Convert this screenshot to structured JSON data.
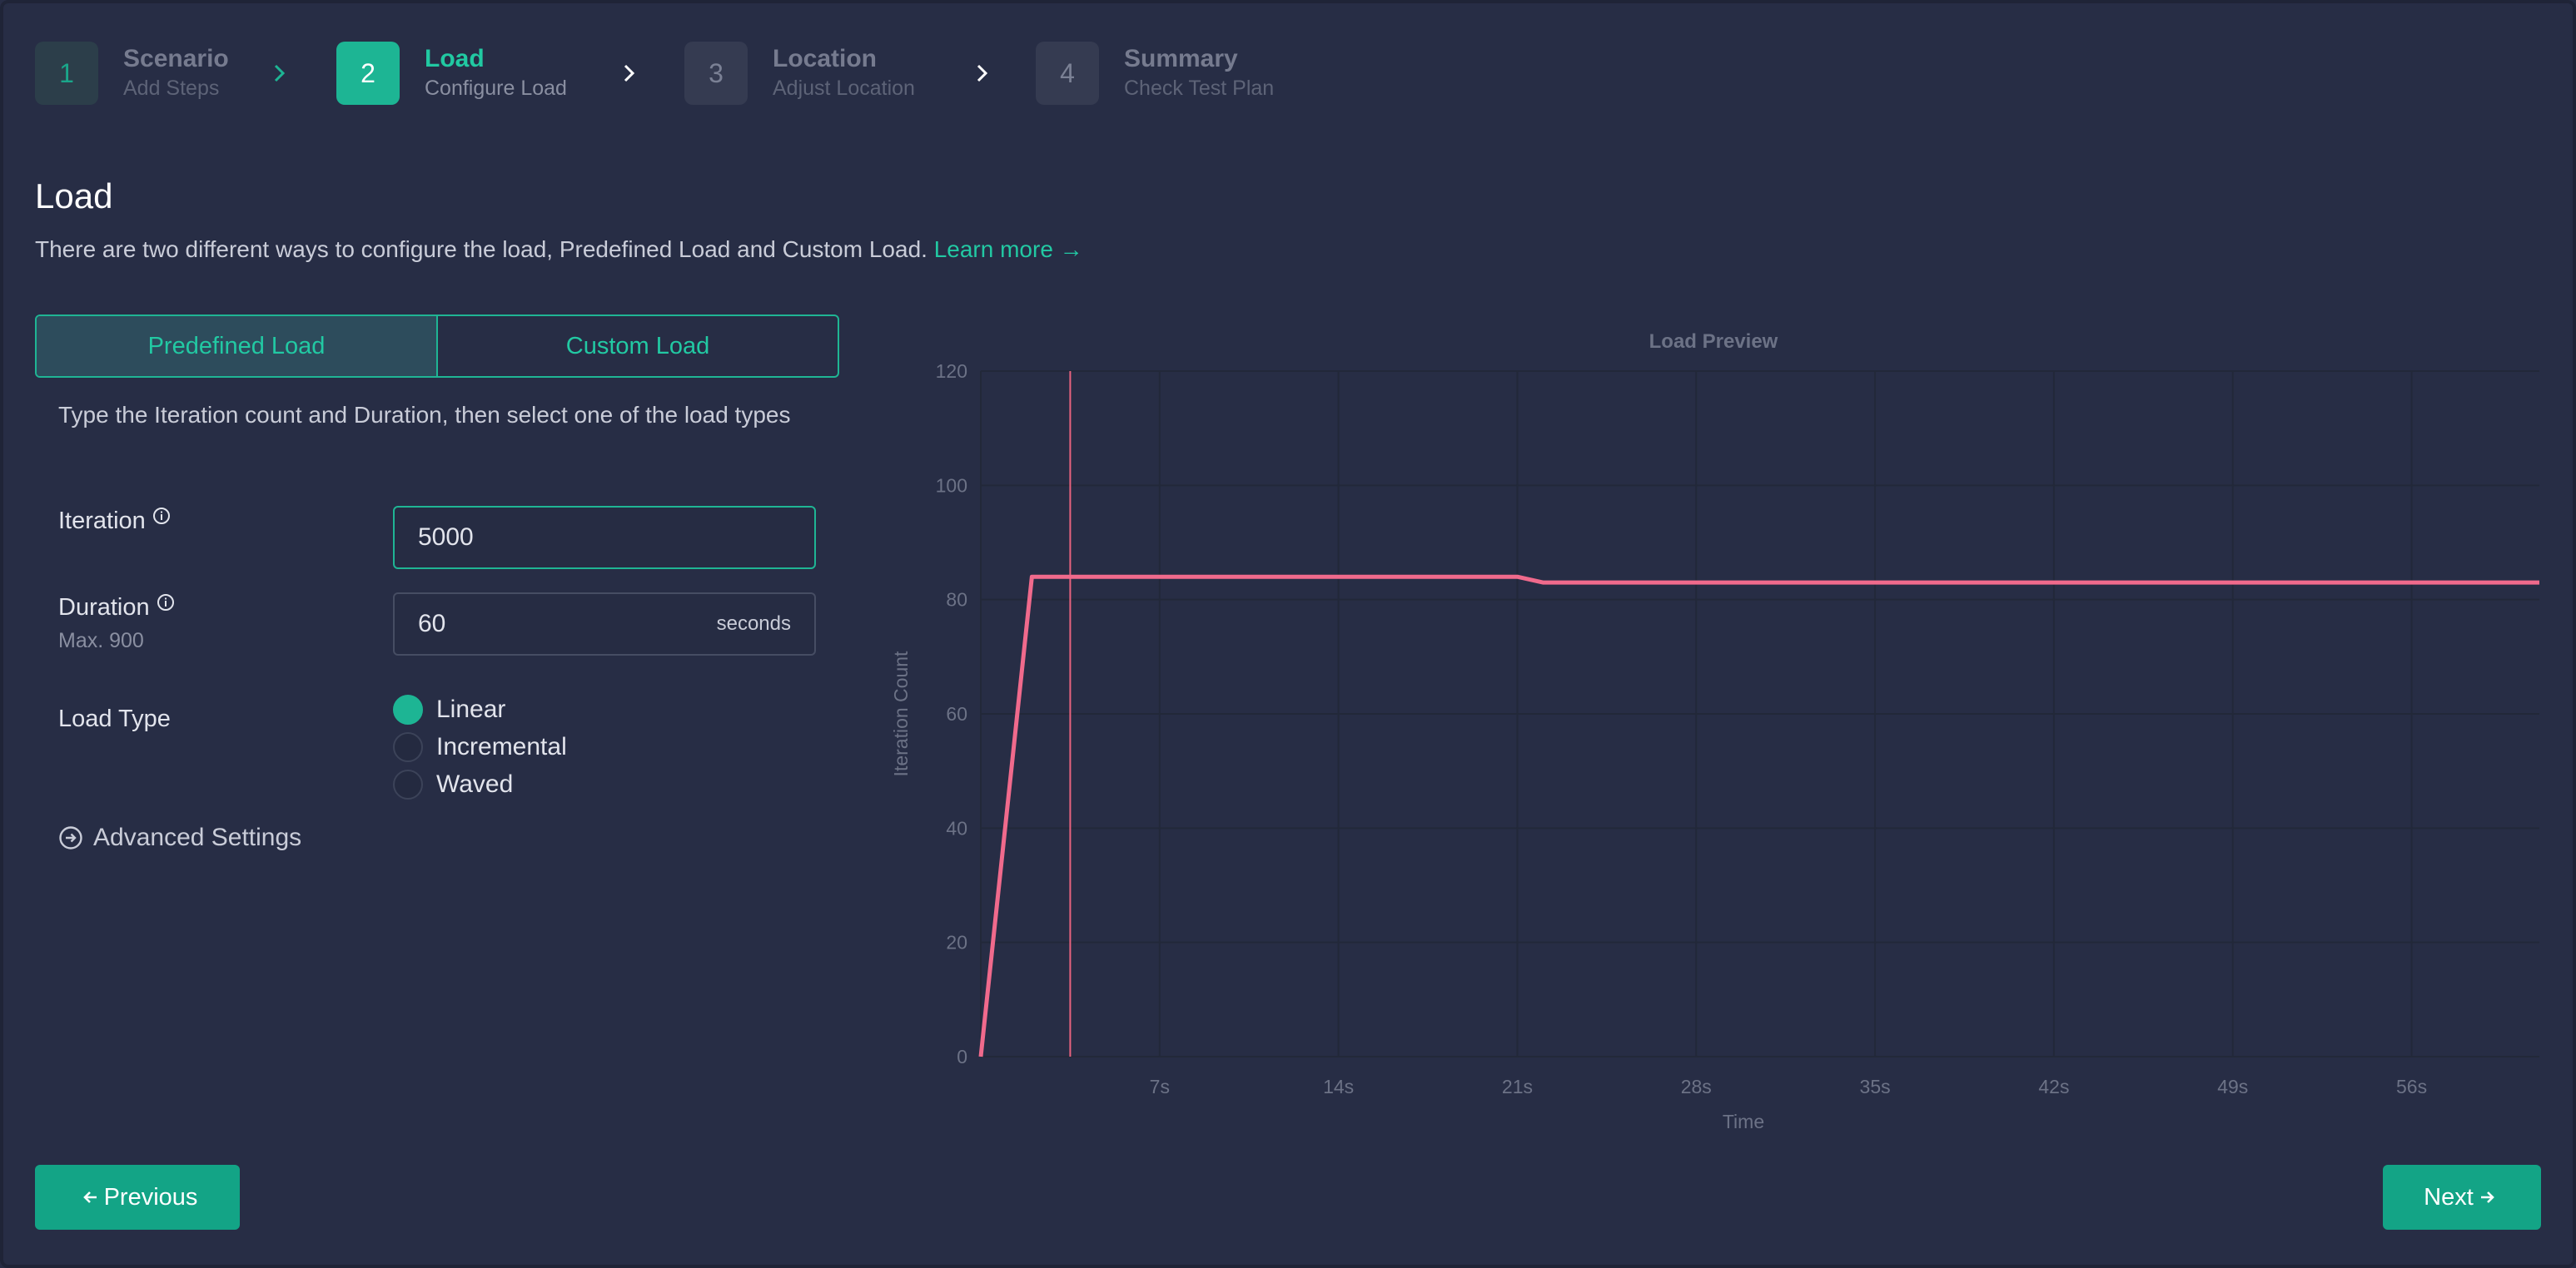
{
  "stepper": {
    "steps": [
      {
        "num": "1",
        "title": "Scenario",
        "sub": "Add Steps",
        "state": "done"
      },
      {
        "num": "2",
        "title": "Load",
        "sub": "Configure Load",
        "state": "active"
      },
      {
        "num": "3",
        "title": "Location",
        "sub": "Adjust Location",
        "state": "pending"
      },
      {
        "num": "4",
        "title": "Summary",
        "sub": "Check Test Plan",
        "state": "pending"
      }
    ]
  },
  "page": {
    "title": "Load",
    "description": "There are two different ways to configure the load, Predefined Load and Custom Load.",
    "learn_more": "Learn more →"
  },
  "tabs": {
    "predefined": "Predefined Load",
    "custom": "Custom Load",
    "active": "predefined"
  },
  "form": {
    "description": "Type the Iteration count and Duration, then select one of the load types",
    "iteration_label": "Iteration",
    "iteration_value": "5000",
    "duration_label": "Duration",
    "duration_hint": "Max. 900",
    "duration_value": "60",
    "duration_unit": "seconds",
    "load_type_label": "Load Type",
    "load_types": [
      "Linear",
      "Incremental",
      "Waved"
    ],
    "selected_load_type": "Linear",
    "advanced_settings": "Advanced Settings"
  },
  "chart_data": {
    "type": "line",
    "title": "Load Preview",
    "xlabel": "Time",
    "ylabel": "Iteration Count",
    "xlim": [
      0,
      61
    ],
    "ylim": [
      0,
      120
    ],
    "x_ticks": [
      7,
      14,
      21,
      28,
      35,
      42,
      49,
      56
    ],
    "x_tick_labels": [
      "7s",
      "14s",
      "21s",
      "28s",
      "35s",
      "42s",
      "49s",
      "56s"
    ],
    "y_ticks": [
      0,
      20,
      40,
      60,
      80,
      100,
      120
    ],
    "grid": true,
    "marker_x": 3.5,
    "series": [
      {
        "color": "#f06a8c",
        "x": [
          0,
          2,
          21,
          22,
          61
        ],
        "y": [
          0,
          84,
          84,
          83,
          83
        ]
      }
    ]
  },
  "nav": {
    "previous": "Previous",
    "next": "Next"
  },
  "colors": {
    "accent": "#1db594",
    "background": "#272d45",
    "series": "#f06a8c"
  }
}
